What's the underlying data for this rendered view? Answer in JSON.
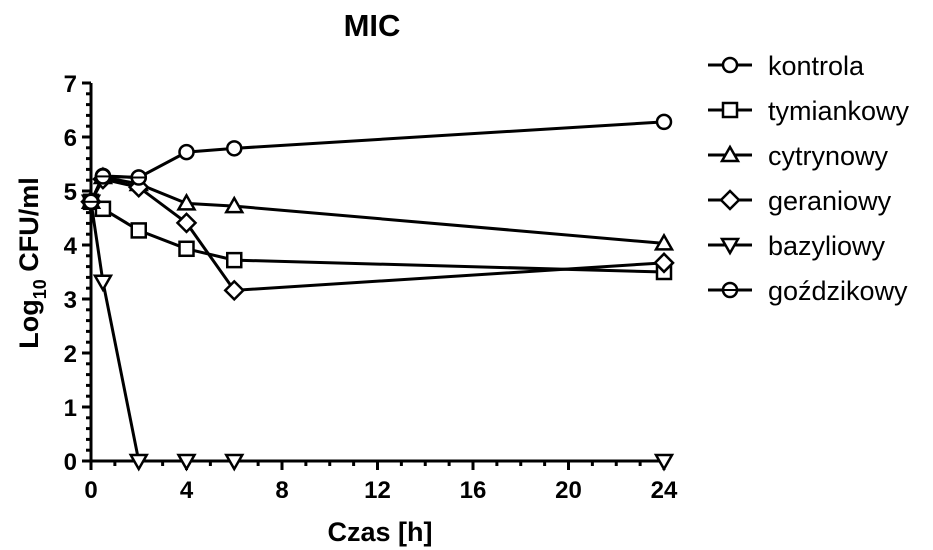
{
  "chart_data": {
    "type": "line",
    "title": "MIC",
    "xlabel": "Czas [h]",
    "ylabel": {
      "main": "Log",
      "sub": "10",
      "rest": " CFU/ml"
    },
    "xlim": [
      0,
      24
    ],
    "ylim": [
      0,
      7
    ],
    "xticks": [
      0,
      4,
      8,
      12,
      16,
      20,
      24
    ],
    "yticks": [
      0,
      1,
      2,
      3,
      4,
      5,
      6,
      7
    ],
    "grid": false,
    "legend_position": "right",
    "series": [
      {
        "name": "kontrola",
        "marker": "circle",
        "x": [
          0,
          0.5,
          2,
          4,
          6,
          24
        ],
        "y": [
          4.8,
          5.28,
          5.25,
          5.72,
          5.79,
          6.28
        ]
      },
      {
        "name": "tymiankowy",
        "marker": "square",
        "x": [
          0,
          0.5,
          2,
          4,
          6,
          24
        ],
        "y": [
          4.8,
          4.67,
          4.27,
          3.93,
          3.72,
          3.5
        ]
      },
      {
        "name": "cytrynowy",
        "marker": "triangle-up",
        "x": [
          0,
          0.5,
          2,
          4,
          6,
          24
        ],
        "y": [
          4.8,
          5.26,
          5.13,
          4.77,
          4.72,
          4.03
        ]
      },
      {
        "name": "geraniowy",
        "marker": "diamond",
        "x": [
          0,
          0.5,
          2,
          4,
          6,
          24
        ],
        "y": [
          4.8,
          5.22,
          5.07,
          4.41,
          3.16,
          3.67
        ]
      },
      {
        "name": "bazyliowy",
        "marker": "triangle-down",
        "x": [
          0,
          0.5,
          2,
          4,
          6,
          24
        ],
        "y": [
          4.8,
          3.32,
          0,
          0,
          0,
          0
        ]
      },
      {
        "name": "goździkowy",
        "marker": "circle-dash",
        "x": [
          0,
          0.5,
          2,
          4,
          6,
          24
        ],
        "y": [
          4.8,
          5.27,
          5.25,
          null,
          null,
          null
        ]
      }
    ]
  }
}
